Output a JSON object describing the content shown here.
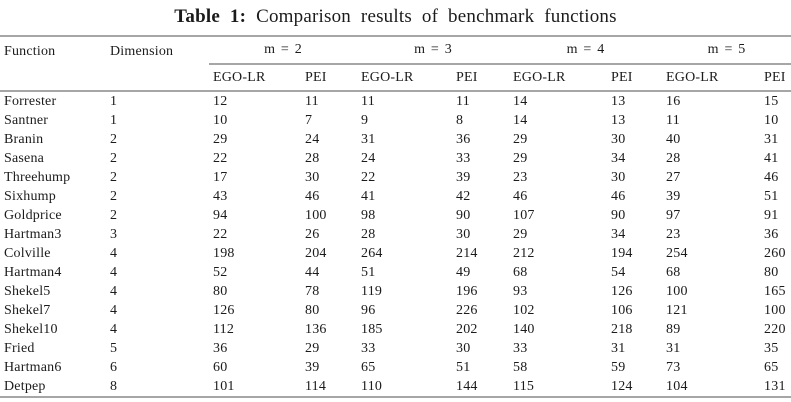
{
  "caption": {
    "label": "Table 1:",
    "text": "Comparison results of benchmark functions"
  },
  "colors": {
    "rule": "#a6a6a6",
    "text": "#1b1b1b",
    "background": "#ffffff"
  },
  "table": {
    "columns": {
      "function": "Function",
      "dimension": "Dimension"
    },
    "groups": [
      {
        "label": "m = 2"
      },
      {
        "label": "m = 3"
      },
      {
        "label": "m = 4"
      },
      {
        "label": "m = 5"
      }
    ],
    "subcolumns": [
      "EGO-LR",
      "PEI"
    ],
    "rows": [
      {
        "function": "Forrester",
        "dimension": "1",
        "values": [
          "12",
          "11",
          "11",
          "11",
          "14",
          "13",
          "16",
          "15"
        ]
      },
      {
        "function": "Santner",
        "dimension": "1",
        "values": [
          "10",
          "7",
          "9",
          "8",
          "14",
          "13",
          "11",
          "10"
        ]
      },
      {
        "function": "Branin",
        "dimension": "2",
        "values": [
          "29",
          "24",
          "31",
          "36",
          "29",
          "30",
          "40",
          "31"
        ]
      },
      {
        "function": "Sasena",
        "dimension": "2",
        "values": [
          "22",
          "28",
          "24",
          "33",
          "29",
          "34",
          "28",
          "41"
        ]
      },
      {
        "function": "Threehump",
        "dimension": "2",
        "values": [
          "17",
          "30",
          "22",
          "39",
          "23",
          "30",
          "27",
          "46"
        ]
      },
      {
        "function": "Sixhump",
        "dimension": "2",
        "values": [
          "43",
          "46",
          "41",
          "42",
          "46",
          "46",
          "39",
          "51"
        ]
      },
      {
        "function": "Goldprice",
        "dimension": "2",
        "values": [
          "94",
          "100",
          "98",
          "90",
          "107",
          "90",
          "97",
          "91"
        ]
      },
      {
        "function": "Hartman3",
        "dimension": "3",
        "values": [
          "22",
          "26",
          "28",
          "30",
          "29",
          "34",
          "23",
          "36"
        ]
      },
      {
        "function": "Colville",
        "dimension": "4",
        "values": [
          "198",
          "204",
          "264",
          "214",
          "212",
          "194",
          "254",
          "260"
        ]
      },
      {
        "function": "Hartman4",
        "dimension": "4",
        "values": [
          "52",
          "44",
          "51",
          "49",
          "68",
          "54",
          "68",
          "80"
        ]
      },
      {
        "function": "Shekel5",
        "dimension": "4",
        "values": [
          "80",
          "78",
          "119",
          "196",
          "93",
          "126",
          "100",
          "165"
        ]
      },
      {
        "function": "Shekel7",
        "dimension": "4",
        "values": [
          "126",
          "80",
          "96",
          "226",
          "102",
          "106",
          "121",
          "100"
        ]
      },
      {
        "function": "Shekel10",
        "dimension": "4",
        "values": [
          "112",
          "136",
          "185",
          "202",
          "140",
          "218",
          "89",
          "220"
        ]
      },
      {
        "function": "Fried",
        "dimension": "5",
        "values": [
          "36",
          "29",
          "33",
          "30",
          "33",
          "31",
          "31",
          "35"
        ]
      },
      {
        "function": "Hartman6",
        "dimension": "6",
        "values": [
          "60",
          "39",
          "65",
          "51",
          "58",
          "59",
          "73",
          "65"
        ]
      },
      {
        "function": "Detpep",
        "dimension": "8",
        "values": [
          "101",
          "114",
          "110",
          "144",
          "115",
          "124",
          "104",
          "131"
        ]
      }
    ]
  }
}
